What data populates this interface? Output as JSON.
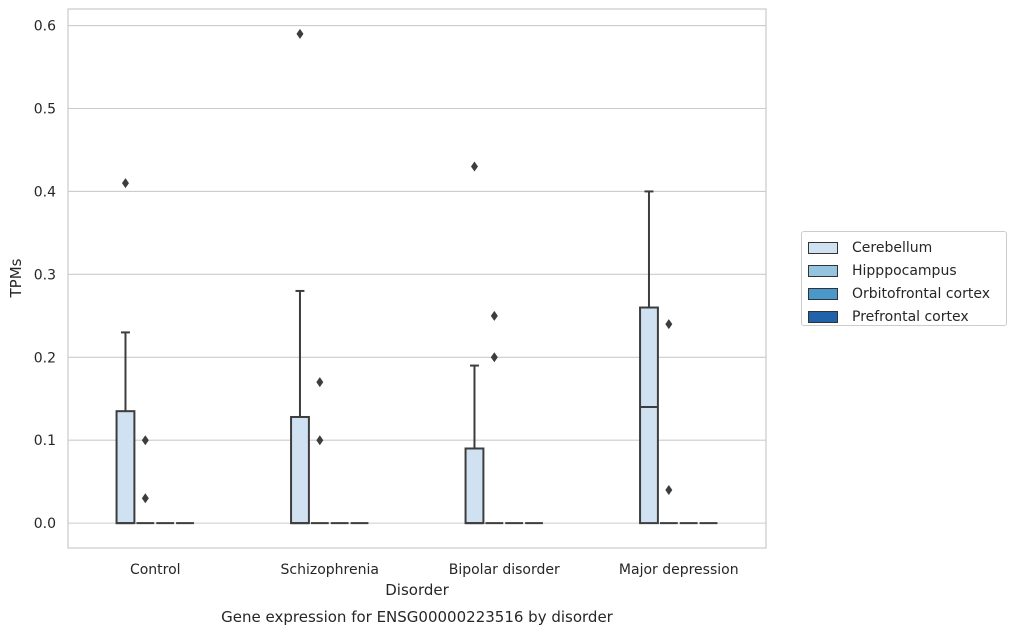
{
  "chart_data": {
    "type": "box",
    "title": "Gene expression for ENSG00000223516 by disorder",
    "xlabel": "Disorder",
    "ylabel": "TPMs",
    "ylim": [
      -0.03,
      0.62
    ],
    "yticks": [
      "0.0",
      "0.1",
      "0.2",
      "0.3",
      "0.4",
      "0.5",
      "0.6"
    ],
    "grid": "horizontal",
    "legend_position": "right",
    "categories": [
      "Control",
      "Schizophrenia",
      "Bipolar disorder",
      "Major depression"
    ],
    "series": [
      {
        "name": "Cerebellum",
        "color": "#d0e1f2",
        "boxes": [
          {
            "q1": 0.0,
            "median": 0.0,
            "q3": 0.135,
            "whisker_low": 0.0,
            "whisker_high": 0.23,
            "outliers": [
              0.41
            ]
          },
          {
            "q1": 0.0,
            "median": 0.0,
            "q3": 0.128,
            "whisker_low": 0.0,
            "whisker_high": 0.28,
            "outliers": [
              0.59
            ]
          },
          {
            "q1": 0.0,
            "median": 0.0,
            "q3": 0.09,
            "whisker_low": 0.0,
            "whisker_high": 0.19,
            "outliers": [
              0.43
            ]
          },
          {
            "q1": 0.0,
            "median": 0.14,
            "q3": 0.26,
            "whisker_low": 0.0,
            "whisker_high": 0.4,
            "outliers": []
          }
        ]
      },
      {
        "name": "Hipppocampus",
        "color": "#94c4df",
        "boxes": [
          {
            "q1": 0.0,
            "median": 0.0,
            "q3": 0.0,
            "whisker_low": 0.0,
            "whisker_high": 0.0,
            "outliers": [
              0.1,
              0.03
            ]
          },
          {
            "q1": 0.0,
            "median": 0.0,
            "q3": 0.0,
            "whisker_low": 0.0,
            "whisker_high": 0.0,
            "outliers": [
              0.17,
              0.1
            ]
          },
          {
            "q1": 0.0,
            "median": 0.0,
            "q3": 0.0,
            "whisker_low": 0.0,
            "whisker_high": 0.0,
            "outliers": [
              0.25,
              0.2
            ]
          },
          {
            "q1": 0.0,
            "median": 0.0,
            "q3": 0.0,
            "whisker_low": 0.0,
            "whisker_high": 0.0,
            "outliers": [
              0.24,
              0.04
            ]
          }
        ]
      },
      {
        "name": "Orbitofrontal cortex",
        "color": "#4a98c9",
        "boxes": [
          {
            "q1": 0.0,
            "median": 0.0,
            "q3": 0.0,
            "whisker_low": 0.0,
            "whisker_high": 0.0,
            "outliers": []
          },
          {
            "q1": 0.0,
            "median": 0.0,
            "q3": 0.0,
            "whisker_low": 0.0,
            "whisker_high": 0.0,
            "outliers": []
          },
          {
            "q1": 0.0,
            "median": 0.0,
            "q3": 0.0,
            "whisker_low": 0.0,
            "whisker_high": 0.0,
            "outliers": []
          },
          {
            "q1": 0.0,
            "median": 0.0,
            "q3": 0.0,
            "whisker_low": 0.0,
            "whisker_high": 0.0,
            "outliers": []
          }
        ]
      },
      {
        "name": "Prefrontal cortex",
        "color": "#2163aa",
        "boxes": [
          {
            "q1": 0.0,
            "median": 0.0,
            "q3": 0.0,
            "whisker_low": 0.0,
            "whisker_high": 0.0,
            "outliers": []
          },
          {
            "q1": 0.0,
            "median": 0.0,
            "q3": 0.0,
            "whisker_low": 0.0,
            "whisker_high": 0.0,
            "outliers": []
          },
          {
            "q1": 0.0,
            "median": 0.0,
            "q3": 0.0,
            "whisker_low": 0.0,
            "whisker_high": 0.0,
            "outliers": []
          },
          {
            "q1": 0.0,
            "median": 0.0,
            "q3": 0.0,
            "whisker_low": 0.0,
            "whisker_high": 0.0,
            "outliers": []
          }
        ]
      }
    ]
  }
}
